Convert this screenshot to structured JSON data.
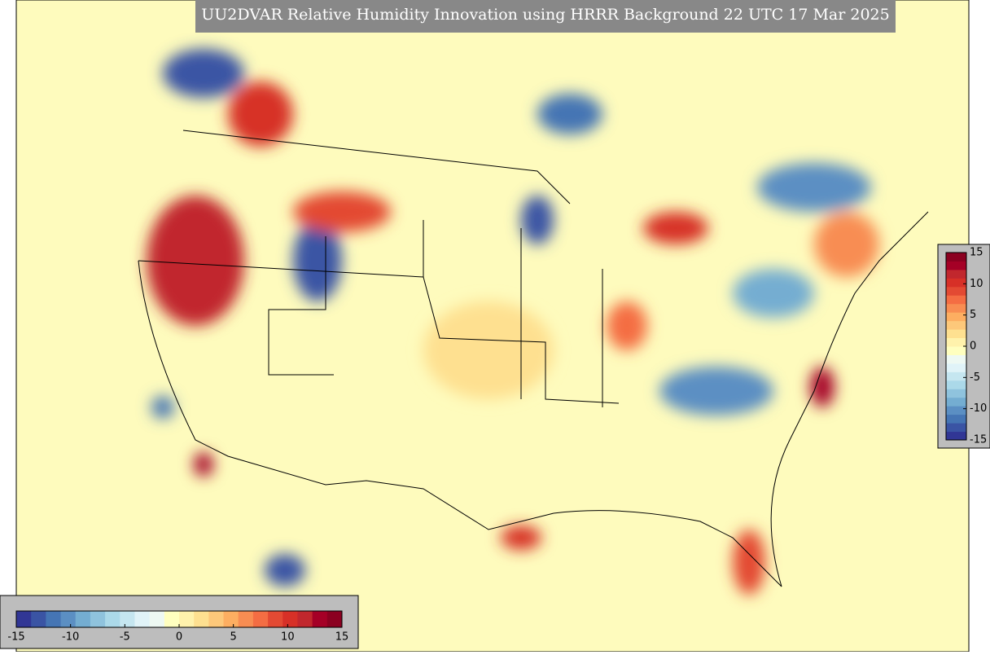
{
  "title": "UU2DVAR Relative Humidity Innovation using HRRR Background 22 UTC 17 Mar 2025",
  "colormap": [
    "#313695",
    "#3a54a4",
    "#4575b4",
    "#5b8fc3",
    "#74add1",
    "#8fc3dd",
    "#abd9e9",
    "#c5e6f0",
    "#e0f3f8",
    "#eef9f3",
    "#ffffbf",
    "#fff2ac",
    "#fee090",
    "#fdc87a",
    "#fdae61",
    "#f88d52",
    "#f46d43",
    "#e34a33",
    "#d73027",
    "#c1272d",
    "#a50026",
    "#8b0020"
  ],
  "colorbars": [
    {
      "orientation": "horizontal",
      "lim": [
        -15,
        15
      ],
      "ticks": [
        -15,
        -10,
        -5,
        0,
        5,
        10,
        15
      ]
    },
    {
      "orientation": "vertical",
      "lim": [
        -15,
        15
      ],
      "ticks": [
        -15,
        -10,
        -5,
        0,
        5,
        10,
        15
      ]
    }
  ]
}
